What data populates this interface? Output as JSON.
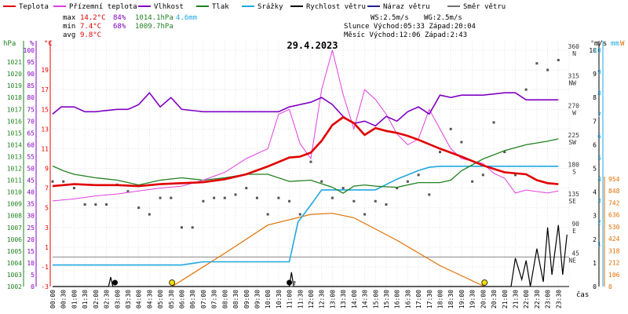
{
  "chart_data": {
    "type": "line",
    "title": "29.4.2023",
    "legend": [
      {
        "name": "Teplota",
        "color": "#e00000"
      },
      {
        "name": "Přízemní teplota",
        "color": "#e040e0"
      },
      {
        "name": "Vlhkost",
        "color": "#8000c0"
      },
      {
        "name": "Tlak",
        "color": "#208020"
      },
      {
        "name": "Srážky",
        "color": "#20a8e0"
      },
      {
        "name": "Rychlost větru",
        "color": "#000000"
      },
      {
        "name": "Náraz větru",
        "color": "#202090"
      },
      {
        "name": "Směr větru",
        "color": "#707070"
      }
    ],
    "stats": {
      "max_label": "max",
      "max_temp": "14.2°C",
      "max_hum": "84%",
      "max_press": "1014.1hPa",
      "max_rain": "4.6mm",
      "min_label": "min",
      "min_temp": "7.4°C",
      "min_hum": "68%",
      "min_press": "1009.7hPa",
      "avg_label": "avg",
      "avg_temp": "9.8°C",
      "ws": "WS:2.5m/s",
      "wg": "WG:2.5m/s",
      "sun": "Slunce Východ:05:33  Západ:20:04",
      "moon": "Měsíc  Východ:12:06  Západ:2:43"
    },
    "x_label": "čas",
    "x_ticks": [
      "00:00",
      "00:30",
      "01:00",
      "01:30",
      "02:00",
      "02:30",
      "03:00",
      "03:30",
      "04:00",
      "04:30",
      "05:00",
      "05:30",
      "06:00",
      "06:30",
      "07:00",
      "07:30",
      "08:00",
      "08:30",
      "09:00",
      "09:30",
      "10:00",
      "10:30",
      "11:00",
      "11:30",
      "12:00",
      "12:30",
      "13:00",
      "13:30",
      "14:00",
      "14:30",
      "15:00",
      "15:30",
      "16:00",
      "16:30",
      "17:00",
      "17:30",
      "18:00",
      "18:30",
      "19:00",
      "19:30",
      "20:00",
      "20:30",
      "21:00",
      "21:30",
      "22:00",
      "22:30",
      "23:00",
      "23:30"
    ],
    "axes": {
      "press": {
        "unit": "hPa",
        "min": 1002,
        "max": 1022,
        "ticks": [
          1002,
          1003,
          1004,
          1005,
          1006,
          1007,
          1008,
          1009,
          1010,
          1011,
          1012,
          1013,
          1014,
          1015,
          1016,
          1017,
          1018,
          1019,
          1020,
          1021
        ]
      },
      "hum": {
        "unit": "%",
        "min": 0,
        "max": 100,
        "ticks": [
          "0",
          "5",
          "10",
          "15",
          "20",
          "25",
          "30",
          "35",
          "40",
          "45",
          "50",
          "55",
          "60",
          "65",
          "70",
          "75",
          "80",
          "85",
          "90",
          "95",
          "100"
        ]
      },
      "temp": {
        "unit": "°C",
        "min": -3,
        "max": 21,
        "ticks": [
          "-3",
          "-1",
          "1",
          "3",
          "5",
          "7",
          "9",
          "11",
          "13",
          "15",
          "17",
          "19"
        ]
      },
      "dir": {
        "unit": "°",
        "ticks": [
          {
            "deg": "45",
            "dir": "NE"
          },
          {
            "deg": "90",
            "dir": "E"
          },
          {
            "deg": "135",
            "dir": "SE"
          },
          {
            "deg": "180",
            "dir": "S"
          },
          {
            "deg": "225",
            "dir": "SW"
          },
          {
            "deg": "270",
            "dir": "W"
          },
          {
            "deg": "315",
            "dir": "NW"
          },
          {
            "deg": "360",
            "dir": "N"
          }
        ]
      },
      "wind": {
        "unit": "m/s",
        "min": 0,
        "max": 10,
        "ticks": [
          "0",
          "1",
          "2",
          "3",
          "4",
          "5",
          "6",
          "7",
          "8",
          "9",
          "10"
        ]
      },
      "rain": {
        "unit": "mm",
        "ticks": [
          "1",
          "2",
          "3",
          "4",
          "5",
          "6",
          "7",
          "8",
          "9",
          "10"
        ]
      },
      "solar": {
        "unit": "W",
        "ticks": [
          "0",
          "106",
          "212",
          "318",
          "424",
          "530",
          "636",
          "742",
          "848",
          "954"
        ]
      }
    },
    "series": {
      "temp": [
        [
          0,
          7.2
        ],
        [
          1,
          7.4
        ],
        [
          2,
          7.3
        ],
        [
          3,
          7.3
        ],
        [
          4,
          7.2
        ],
        [
          5,
          7.4
        ],
        [
          6,
          7.5
        ],
        [
          7,
          7.6
        ],
        [
          8,
          7.9
        ],
        [
          9,
          8.4
        ],
        [
          10,
          9.2
        ],
        [
          11,
          10.1
        ],
        [
          11.5,
          10.2
        ],
        [
          12,
          10.6
        ],
        [
          12.5,
          11.8
        ],
        [
          13,
          13.4
        ],
        [
          13.5,
          14.2
        ],
        [
          14,
          13.6
        ],
        [
          14.5,
          12.4
        ],
        [
          15,
          13.1
        ],
        [
          15.5,
          12.8
        ],
        [
          16,
          12.6
        ],
        [
          16.5,
          12.3
        ],
        [
          17,
          11.9
        ],
        [
          18,
          11.0
        ],
        [
          18.5,
          10.6
        ],
        [
          19,
          10.2
        ],
        [
          20,
          9.3
        ],
        [
          21,
          8.6
        ],
        [
          22,
          8.4
        ],
        [
          22.5,
          7.8
        ],
        [
          23,
          7.5
        ],
        [
          23.5,
          7.4
        ]
      ],
      "ground_temp": [
        [
          0,
          5.7
        ],
        [
          1,
          5.9
        ],
        [
          2,
          6.2
        ],
        [
          3,
          6.4
        ],
        [
          4,
          6.7
        ],
        [
          5,
          7.0
        ],
        [
          6,
          7.2
        ],
        [
          7,
          7.8
        ],
        [
          8,
          8.6
        ],
        [
          9,
          10.0
        ],
        [
          10,
          11.0
        ],
        [
          10.5,
          14.5
        ],
        [
          11,
          15.0
        ],
        [
          11.5,
          11.5
        ],
        [
          12,
          10.0
        ],
        [
          12.5,
          17.0
        ],
        [
          13,
          21.0
        ],
        [
          13.5,
          16.5
        ],
        [
          14,
          13.0
        ],
        [
          14.5,
          17.0
        ],
        [
          15,
          16.0
        ],
        [
          15.5,
          14.5
        ],
        [
          16,
          12.5
        ],
        [
          16.5,
          11.4
        ],
        [
          17,
          12.0
        ],
        [
          17.5,
          15.0
        ],
        [
          18,
          13.0
        ],
        [
          18.5,
          11.0
        ],
        [
          19,
          10.0
        ],
        [
          20,
          9.5
        ],
        [
          20.5,
          8.5
        ],
        [
          21,
          8.0
        ],
        [
          21.5,
          6.5
        ],
        [
          22,
          6.8
        ],
        [
          23,
          6.5
        ],
        [
          23.5,
          6.7
        ]
      ],
      "humidity": [
        [
          0,
          73
        ],
        [
          0.4,
          76
        ],
        [
          1,
          76
        ],
        [
          1.5,
          74
        ],
        [
          2,
          74
        ],
        [
          3,
          75
        ],
        [
          3.5,
          75
        ],
        [
          4,
          77
        ],
        [
          4.5,
          82
        ],
        [
          5,
          76
        ],
        [
          5.5,
          80
        ],
        [
          6,
          75
        ],
        [
          7,
          74
        ],
        [
          8,
          74
        ],
        [
          9,
          74
        ],
        [
          10,
          74
        ],
        [
          10.5,
          74
        ],
        [
          11,
          76
        ],
        [
          12,
          78
        ],
        [
          12.5,
          80
        ],
        [
          13,
          77
        ],
        [
          13.5,
          72
        ],
        [
          14,
          69
        ],
        [
          14.5,
          70
        ],
        [
          15,
          68
        ],
        [
          15.5,
          72
        ],
        [
          16,
          70
        ],
        [
          16.5,
          74
        ],
        [
          17,
          76
        ],
        [
          17.5,
          73
        ],
        [
          18,
          81
        ],
        [
          18.5,
          80
        ],
        [
          19,
          81
        ],
        [
          20,
          81
        ],
        [
          21,
          82
        ],
        [
          21.5,
          82
        ],
        [
          22,
          79
        ],
        [
          23,
          79
        ],
        [
          23.5,
          79
        ]
      ],
      "pressure": [
        [
          0,
          1012.2
        ],
        [
          0.5,
          1011.8
        ],
        [
          1,
          1011.5
        ],
        [
          2,
          1011.2
        ],
        [
          3,
          1011.0
        ],
        [
          4,
          1010.6
        ],
        [
          5,
          1011.0
        ],
        [
          6,
          1011.2
        ],
        [
          7,
          1011.0
        ],
        [
          8,
          1011.2
        ],
        [
          9,
          1011.5
        ],
        [
          10,
          1011.5
        ],
        [
          11,
          1010.9
        ],
        [
          12,
          1011.0
        ],
        [
          13,
          1010.4
        ],
        [
          13.5,
          1009.9
        ],
        [
          14,
          1010.5
        ],
        [
          14.5,
          1010.6
        ],
        [
          15,
          1010.5
        ],
        [
          16,
          1010.4
        ],
        [
          17,
          1010.8
        ],
        [
          18,
          1010.8
        ],
        [
          18.5,
          1011.0
        ],
        [
          19,
          1011.8
        ],
        [
          20,
          1012.8
        ],
        [
          21,
          1013.5
        ],
        [
          22,
          1014.0
        ],
        [
          23,
          1014.3
        ],
        [
          23.5,
          1014.5
        ]
      ],
      "rain": [
        [
          0,
          0
        ],
        [
          6,
          0
        ],
        [
          7,
          0.15
        ],
        [
          8,
          0.15
        ],
        [
          9,
          0.15
        ],
        [
          10,
          0.15
        ],
        [
          11,
          0.15
        ],
        [
          11.4,
          2
        ],
        [
          12,
          2.8
        ],
        [
          12.5,
          3.5
        ],
        [
          13,
          3.5
        ],
        [
          14,
          3.5
        ],
        [
          15,
          3.5
        ],
        [
          15.6,
          3.8
        ],
        [
          16,
          4.0
        ],
        [
          16.5,
          4.2
        ],
        [
          17,
          4.4
        ],
        [
          17.5,
          4.55
        ],
        [
          18,
          4.6
        ],
        [
          20,
          4.6
        ],
        [
          22,
          4.6
        ],
        [
          23,
          4.6
        ],
        [
          23.5,
          4.6
        ]
      ],
      "wind_speed": [
        [
          0,
          0
        ],
        [
          2.6,
          0
        ],
        [
          2.7,
          0.4
        ],
        [
          2.8,
          0
        ],
        [
          11,
          0
        ],
        [
          11.1,
          0.6
        ],
        [
          11.2,
          0
        ],
        [
          21.3,
          0
        ],
        [
          21.5,
          1.2
        ],
        [
          21.8,
          0.3
        ],
        [
          22,
          1.1
        ],
        [
          22.2,
          0
        ],
        [
          22.5,
          1.6
        ],
        [
          22.8,
          0.2
        ],
        [
          23,
          2.5
        ],
        [
          23.2,
          0.5
        ],
        [
          23.5,
          2.6
        ],
        [
          23.7,
          0.5
        ],
        [
          23.9,
          2.2
        ]
      ],
      "solar": [
        [
          5.55,
          0
        ],
        [
          8,
          295
        ],
        [
          10,
          545
        ],
        [
          12,
          640
        ],
        [
          13,
          650
        ],
        [
          14,
          610
        ],
        [
          16,
          410
        ],
        [
          18,
          185
        ],
        [
          20.07,
          0
        ]
      ],
      "wind_dir": [
        [
          0,
          160
        ],
        [
          0.5,
          160
        ],
        [
          1,
          150
        ],
        [
          1.5,
          125
        ],
        [
          2,
          125
        ],
        [
          2.5,
          125
        ],
        [
          3,
          155
        ],
        [
          3.5,
          145
        ],
        [
          4,
          120
        ],
        [
          4.5,
          110
        ],
        [
          5,
          135
        ],
        [
          5.5,
          135
        ],
        [
          6,
          90
        ],
        [
          6.5,
          90
        ],
        [
          7,
          130
        ],
        [
          7.5,
          135
        ],
        [
          8,
          135
        ],
        [
          8.5,
          140
        ],
        [
          9,
          150
        ],
        [
          9.5,
          135
        ],
        [
          10,
          110
        ],
        [
          10.5,
          135
        ],
        [
          11,
          130
        ],
        [
          11.5,
          110
        ],
        [
          12,
          190
        ],
        [
          12.5,
          160
        ],
        [
          13,
          135
        ],
        [
          13.5,
          150
        ],
        [
          14,
          130
        ],
        [
          14.5,
          110
        ],
        [
          15,
          130
        ],
        [
          15.5,
          125
        ],
        [
          16,
          150
        ],
        [
          16.5,
          160
        ],
        [
          17,
          170
        ],
        [
          17.5,
          140
        ],
        [
          18,
          205
        ],
        [
          18.5,
          240
        ],
        [
          19,
          220
        ],
        [
          19.5,
          160
        ],
        [
          20,
          170
        ],
        [
          20.5,
          250
        ],
        [
          21,
          205
        ],
        [
          21.5,
          170
        ],
        [
          22,
          300
        ],
        [
          22.5,
          340
        ],
        [
          23,
          330
        ],
        [
          23.5,
          345
        ]
      ]
    },
    "events": {
      "markers_black": [
        2.9,
        11.0
      ],
      "markers_yellow": [
        5.55,
        20.07
      ],
      "arrow_label": "↑"
    }
  }
}
